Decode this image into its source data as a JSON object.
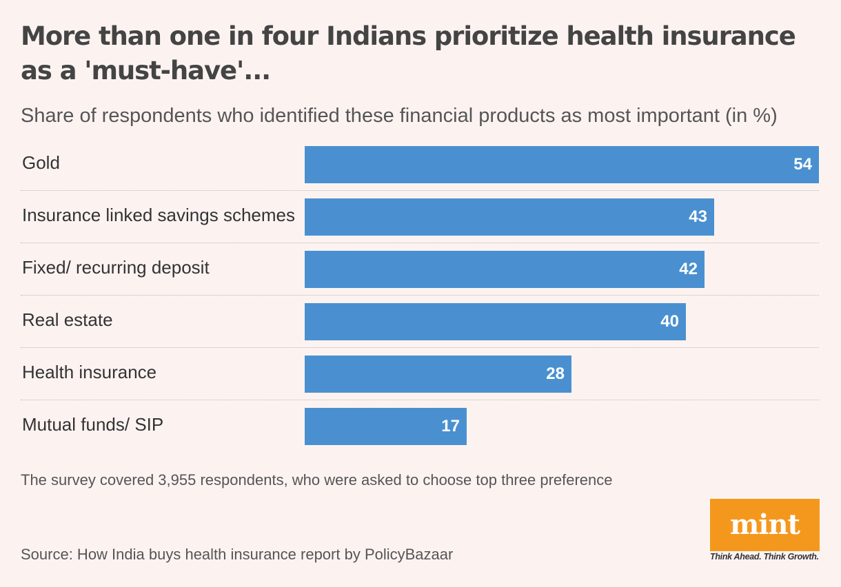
{
  "title": "More than one in four Indians prioritize health insurance as a 'must-have'...",
  "subtitle": "Share of respondents who identified these financial products as most important (in %)",
  "note": "The survey covered 3,955 respondents, who were asked to choose top three preference",
  "source": "Source: How India buys health insurance report by PolicyBazaar",
  "logo": {
    "word": "mint",
    "tagline": "Think Ahead. Think Growth.",
    "color": "#f4981d"
  },
  "colors": {
    "bar": "#4a90d0",
    "background": "#fcf3f1"
  },
  "chart_data": {
    "type": "bar",
    "orientation": "horizontal",
    "title": "More than one in four Indians prioritize health insurance as a 'must-have'...",
    "subtitle": "Share of respondents who identified these financial products as most important (in %)",
    "xlabel": "",
    "ylabel": "",
    "xlim": [
      0,
      54
    ],
    "grid": false,
    "categories": [
      "Gold",
      "Insurance linked savings schemes",
      "Fixed/ recurring deposit",
      "Real estate",
      "Health insurance",
      "Mutual funds/ SIP"
    ],
    "values": [
      54,
      43,
      42,
      40,
      28,
      17
    ]
  }
}
